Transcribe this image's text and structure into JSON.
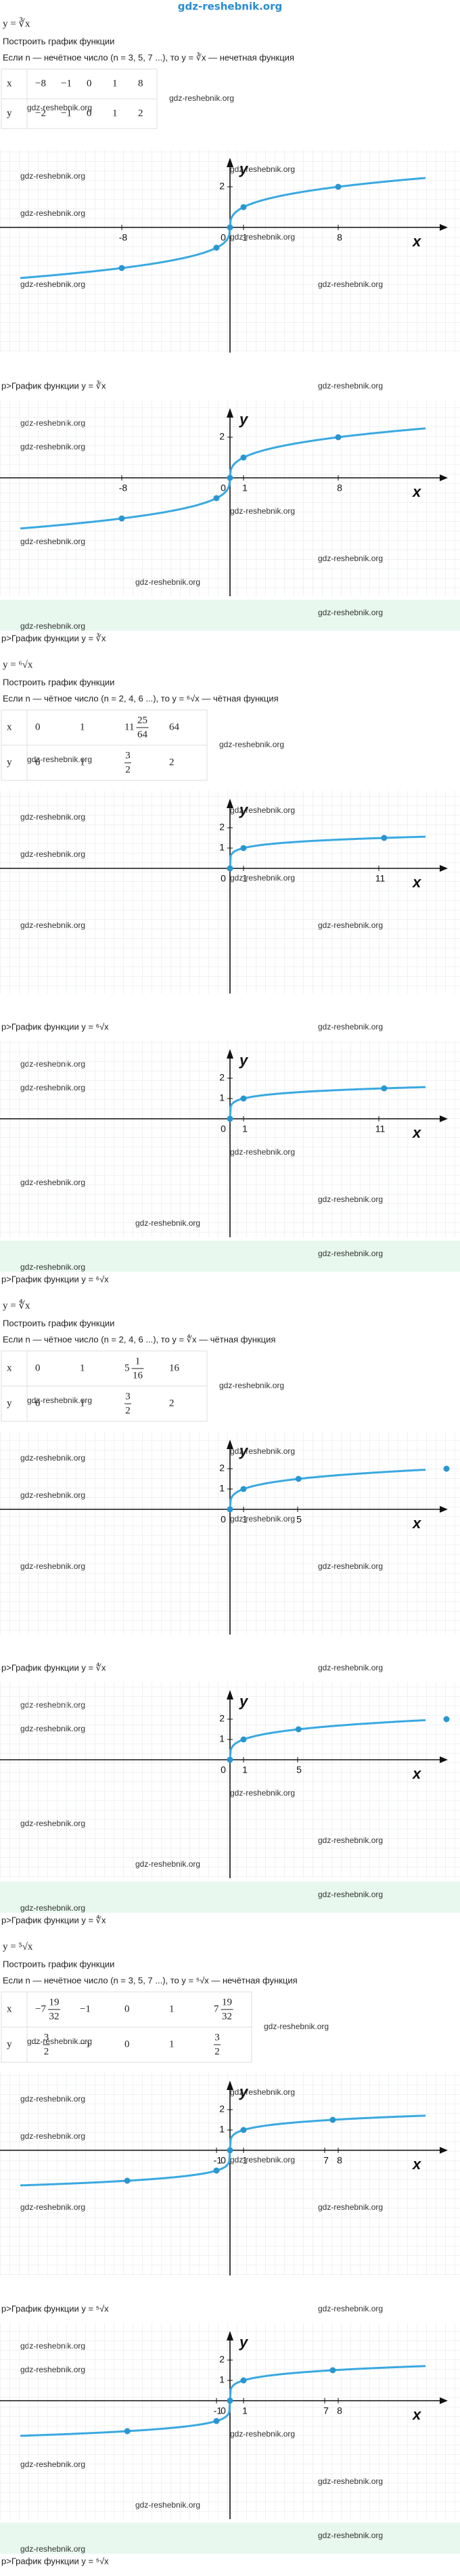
{
  "site": "gdz-reshebnik.org",
  "watermark": "gdz-reshebnik.org",
  "sections": [
    {
      "formula": "y = ∛x",
      "task": "Построить график функции",
      "condition": "Если n — нечётное число (n = 3, 5, 7 ...), то y = ∛x — нечетная функция",
      "table": {
        "rows": [
          [
            "x",
            "−8",
            "−1",
            "0",
            "1",
            "8"
          ],
          [
            "y",
            "−2",
            "−1",
            "0",
            "1",
            "2"
          ]
        ]
      },
      "graph": {
        "x_label": "x",
        "y_label": "y",
        "xticks": [
          -8,
          0,
          1,
          8
        ],
        "yticks": [
          2
        ]
      },
      "caption": "р>График функции y = ∛x"
    },
    {
      "formula": "y = ⁶√x",
      "task": "Построить график функции",
      "condition": "Если n — чётное число (n = 2, 4, 6 ...), то y = ⁶√x — чётная функция",
      "table": {
        "rows": [
          [
            "x",
            "0",
            "1",
            {
              "whole": "11",
              "num": "25",
              "den": "64"
            },
            "64"
          ],
          [
            "y",
            "0",
            "1",
            {
              "num": "3",
              "den": "2"
            },
            "2"
          ]
        ]
      },
      "graph": {
        "x_label": "x",
        "y_label": "y",
        "xticks": [
          0,
          1,
          11
        ],
        "yticks": [
          1,
          2
        ]
      },
      "caption": "р>График функции y = ⁶√x"
    },
    {
      "formula": "y = ∜x",
      "task": "Построить график функции",
      "condition": "Если n — чётное число (n = 2, 4, 6 ...), то y = ∜x — чётная функция",
      "table": {
        "rows": [
          [
            "x",
            "0",
            "1",
            {
              "whole": "5",
              "num": "1",
              "den": "16"
            },
            "16"
          ],
          [
            "y",
            "0",
            "1",
            {
              "num": "3",
              "den": "2"
            },
            "2"
          ]
        ]
      },
      "graph": {
        "x_label": "x",
        "y_label": "y",
        "xticks": [
          0,
          1,
          5
        ],
        "yticks": [
          1,
          2
        ]
      },
      "caption": "р>График функции y = ∜x"
    },
    {
      "formula": "y = ⁵√x",
      "task": "Построить график функции",
      "condition": "Если n — нечётное число (n = 3, 5, 7 ...), то y = ⁵√x — нечётная функция",
      "table": {
        "rows": [
          [
            "x",
            {
              "whole": "−7",
              "num": "19",
              "den": "32"
            },
            "−1",
            "0",
            "1",
            {
              "whole": "7",
              "num": "19",
              "den": "32"
            }
          ],
          [
            "y",
            {
              "whole": "−",
              "num": "3",
              "den": "2"
            },
            "−1",
            "0",
            "1",
            {
              "num": "3",
              "den": "2"
            }
          ]
        ]
      },
      "graph": {
        "x_label": "x",
        "y_label": "y",
        "xticks": [
          -1,
          0,
          1,
          7,
          8
        ],
        "yticks": [
          1,
          2
        ]
      },
      "caption": "р>График функции y = ⁵√x"
    }
  ]
}
